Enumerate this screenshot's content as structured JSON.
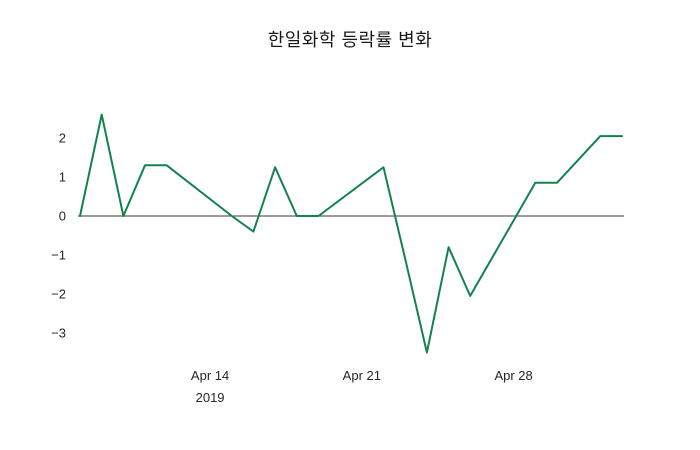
{
  "title": "한일화학 등락률 변화",
  "colors": {
    "line": "#13824e",
    "zero_line": "#3a3a3a",
    "tick_text": "#262626",
    "background": "#ffffff"
  },
  "chart_data": {
    "type": "line",
    "title": "한일화학 등락률 변화",
    "ylabel": "",
    "xlabel": "",
    "legend": false,
    "grid": false,
    "line_color": "#13824e",
    "ylim": [
      -3.9,
      2.9
    ],
    "xlim_days": [
      0,
      25
    ],
    "yticks": [
      2,
      1,
      0,
      -1,
      -2,
      -3
    ],
    "xticks": [
      {
        "label": "Apr 14",
        "sublabel": "2019",
        "day": 6
      },
      {
        "label": "Apr 21",
        "sublabel": "",
        "day": 13
      },
      {
        "label": "Apr 28",
        "sublabel": "",
        "day": 20
      }
    ],
    "points": [
      {
        "date": "Apr 8",
        "day": 0,
        "value": 0.0
      },
      {
        "date": "Apr 9",
        "day": 1,
        "value": 2.6
      },
      {
        "date": "Apr 10",
        "day": 2,
        "value": 0.0
      },
      {
        "date": "Apr 11",
        "day": 3,
        "value": 1.3
      },
      {
        "date": "Apr 12",
        "day": 4,
        "value": 1.3
      },
      {
        "date": "Apr 15",
        "day": 7,
        "value": 0.0
      },
      {
        "date": "Apr 16",
        "day": 8,
        "value": -0.4
      },
      {
        "date": "Apr 17",
        "day": 9,
        "value": 1.25
      },
      {
        "date": "Apr 18",
        "day": 10,
        "value": 0.0
      },
      {
        "date": "Apr 19",
        "day": 11,
        "value": 0.0
      },
      {
        "date": "Apr 22",
        "day": 14,
        "value": 1.25
      },
      {
        "date": "Apr 23",
        "day": 15,
        "value": -1.1
      },
      {
        "date": "Apr 24",
        "day": 16,
        "value": -3.5
      },
      {
        "date": "Apr 25",
        "day": 17,
        "value": -0.8
      },
      {
        "date": "Apr 26",
        "day": 18,
        "value": -2.05
      },
      {
        "date": "Apr 29",
        "day": 21,
        "value": 0.85
      },
      {
        "date": "Apr 30",
        "day": 22,
        "value": 0.85
      },
      {
        "date": "May 2",
        "day": 24,
        "value": 2.05
      },
      {
        "date": "May 3",
        "day": 25,
        "value": 2.05
      }
    ]
  }
}
